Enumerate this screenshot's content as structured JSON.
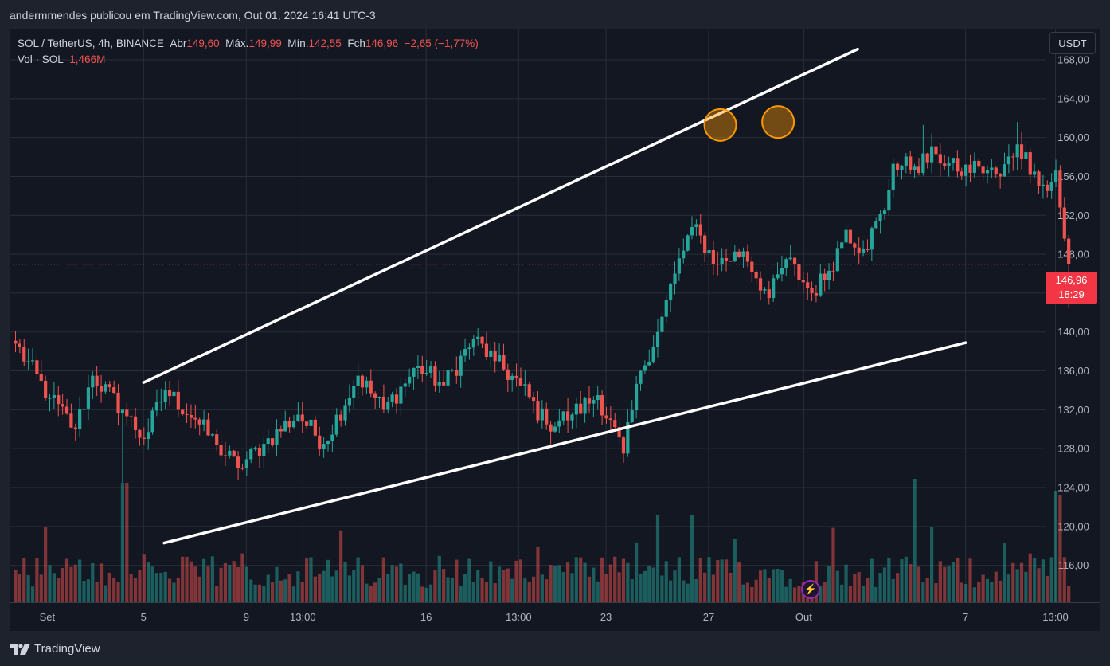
{
  "header": {
    "title": "andermmendes publicou em TradingView.com, Out 01, 2024 16:41 UTC-3"
  },
  "legend": {
    "symbol": "SOL / TetherUS, 4h, BINANCE",
    "open_label": "Abr",
    "open": "149,60",
    "high_label": "Máx.",
    "high": "149,99",
    "low_label": "Mín.",
    "low": "142,55",
    "close_label": "Fch",
    "close": "146,96",
    "change": "−2,65 (−1,77%)",
    "vol_label": "Vol · SOL",
    "vol": "1,466M"
  },
  "unit_button": "USDT",
  "last_price": {
    "price": "146,96",
    "countdown": "18:29"
  },
  "footer": {
    "brand": "TradingView"
  },
  "chart_data": {
    "type": "candlestick",
    "y_axis_ticks": [
      "116,00",
      "120,00",
      "124,00",
      "128,00",
      "132,00",
      "136,00",
      "140,00",
      "144,00",
      "148,00",
      "152,00",
      "156,00",
      "160,00",
      "164,00",
      "168,00"
    ],
    "ylim": [
      112.2,
      171.2
    ],
    "x_axis_labels": [
      "Set",
      "5",
      "9",
      "13:00",
      "16",
      "13:00",
      "23",
      "27",
      "Out",
      "7",
      "13:00"
    ],
    "last_close": 146.96,
    "anchors": [
      {
        "i": 0,
        "c": 138.8
      },
      {
        "i": 8,
        "c": 133.2
      },
      {
        "i": 14,
        "c": 130.0
      },
      {
        "i": 18,
        "c": 135.5
      },
      {
        "i": 25,
        "c": 132.0
      },
      {
        "i": 30,
        "c": 129.0
      },
      {
        "i": 35,
        "c": 134.0
      },
      {
        "i": 42,
        "c": 131.0
      },
      {
        "i": 47,
        "c": 128.4
      },
      {
        "i": 52,
        "c": 126.0
      },
      {
        "i": 58,
        "c": 128.5
      },
      {
        "i": 66,
        "c": 131.5
      },
      {
        "i": 72,
        "c": 128.5
      },
      {
        "i": 80,
        "c": 135.5
      },
      {
        "i": 86,
        "c": 132.0
      },
      {
        "i": 94,
        "c": 136.5
      },
      {
        "i": 100,
        "c": 134.5
      },
      {
        "i": 107,
        "c": 139.3
      },
      {
        "i": 112,
        "c": 137.0
      },
      {
        "i": 118,
        "c": 134.5
      },
      {
        "i": 124,
        "c": 130.5
      },
      {
        "i": 130,
        "c": 131.5
      },
      {
        "i": 136,
        "c": 133.5
      },
      {
        "i": 142,
        "c": 127.5
      },
      {
        "i": 146,
        "c": 136.0
      },
      {
        "i": 150,
        "c": 140.0
      },
      {
        "i": 154,
        "c": 146.0
      },
      {
        "i": 158,
        "c": 150.8
      },
      {
        "i": 164,
        "c": 147.0
      },
      {
        "i": 170,
        "c": 148.3
      },
      {
        "i": 176,
        "c": 143.5
      },
      {
        "i": 180,
        "c": 147.5
      },
      {
        "i": 186,
        "c": 144.0
      },
      {
        "i": 190,
        "c": 146.3
      },
      {
        "i": 194,
        "c": 150.5
      },
      {
        "i": 198,
        "c": 148.5
      },
      {
        "i": 203,
        "c": 152.5
      },
      {
        "i": 205,
        "c": 157.3
      },
      {
        "i": 210,
        "c": 157.0
      },
      {
        "i": 215,
        "c": 158.3
      },
      {
        "i": 220,
        "c": 156.5
      },
      {
        "i": 225,
        "c": 157.0
      },
      {
        "i": 230,
        "c": 156.0
      },
      {
        "i": 234,
        "c": 159.3
      },
      {
        "i": 238,
        "c": 156.5
      },
      {
        "i": 241,
        "c": 154.5
      },
      {
        "i": 243,
        "c": 156.6
      },
      {
        "i": 245,
        "c": 149.6
      },
      {
        "i": 246,
        "c": 146.96
      }
    ],
    "trendlines": [
      {
        "from": [
          "5",
          134.8
        ],
        "to": [
          "Out+1d",
          169.1
        ]
      },
      {
        "from": [
          "5",
          118.3
        ],
        "to": [
          "7",
          138.9
        ]
      }
    ],
    "highlights": [
      {
        "near": "27",
        "price": 161.3
      },
      {
        "near": "Out-1d",
        "price": 161.6
      }
    ],
    "colors": {
      "up": "#26a69a",
      "down": "#ef5350",
      "grid": "#2a2e39",
      "line": "#ffffff",
      "circle": "#ff9800"
    }
  }
}
